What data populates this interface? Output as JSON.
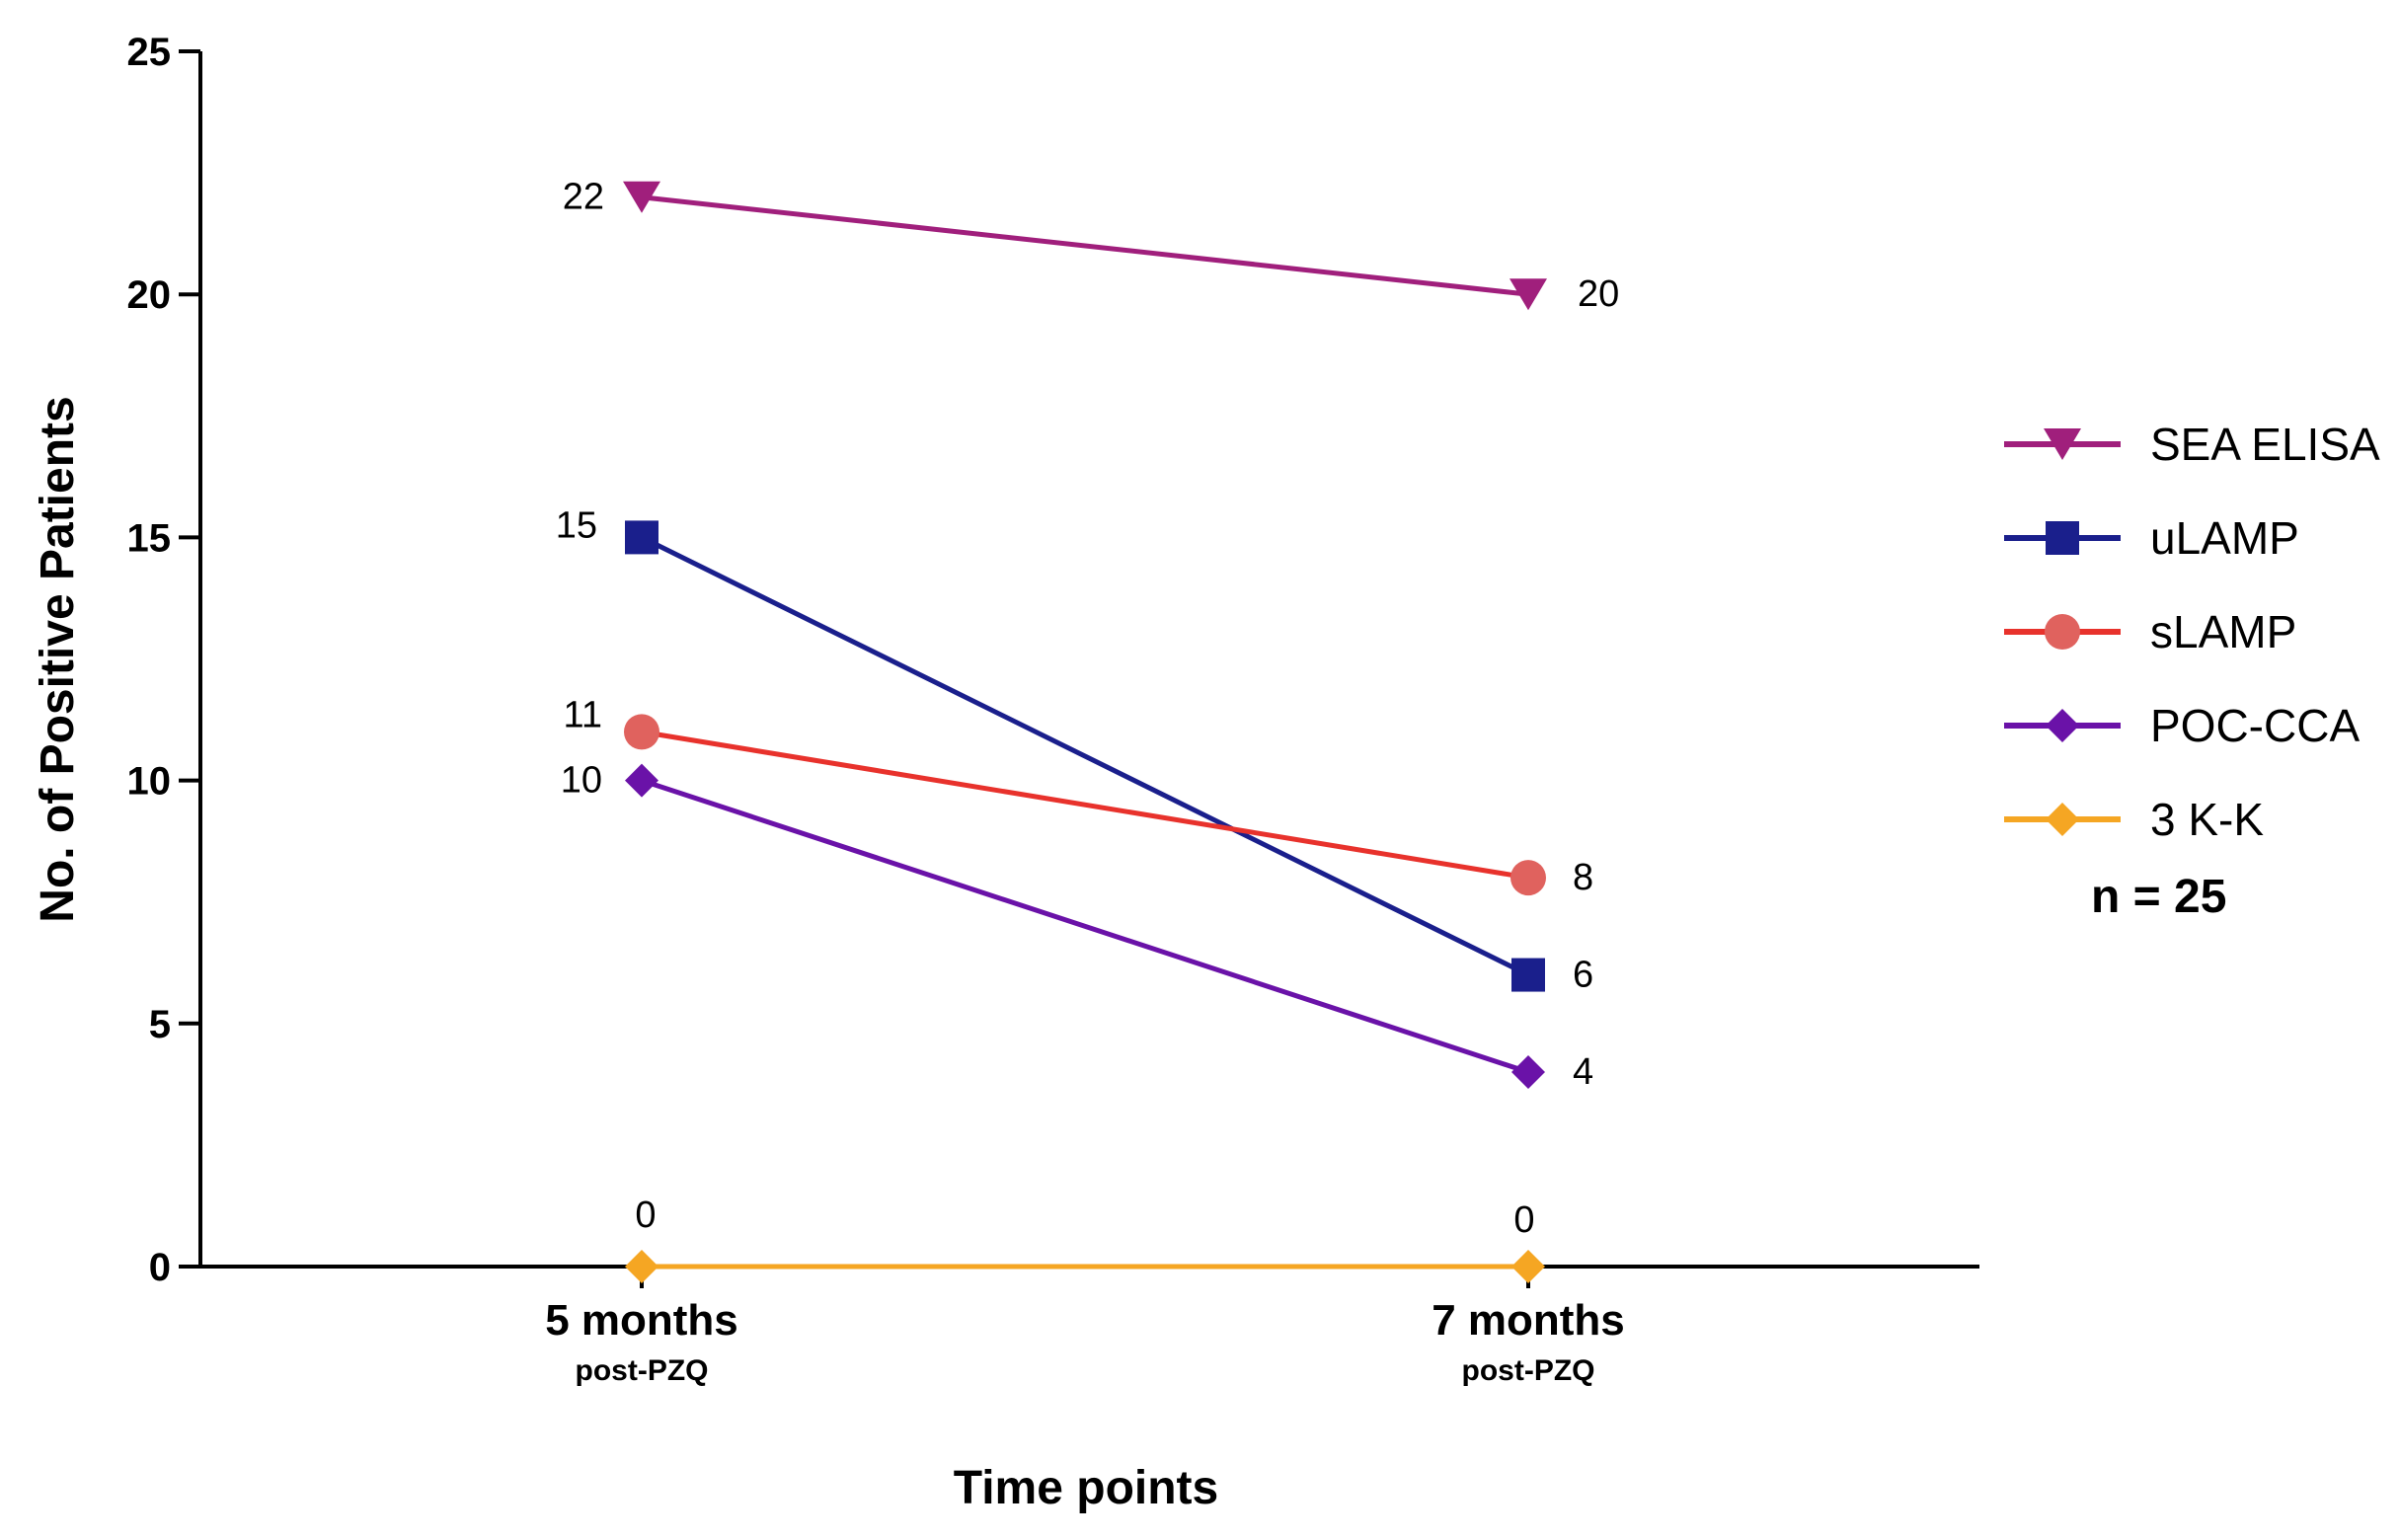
{
  "chart_data": {
    "type": "line",
    "xlabel": "Time points",
    "ylabel": "No. of Positive Patients",
    "ylim": [
      0,
      25
    ],
    "yticks": [
      0,
      5,
      10,
      15,
      20,
      25
    ],
    "categories": [
      {
        "main": "5 months",
        "sub": "post-PZQ"
      },
      {
        "main": "7 months",
        "sub": "post-PZQ"
      }
    ],
    "series": [
      {
        "name": "SEA ELISA",
        "values": [
          22,
          20
        ],
        "color": "#a01f7c",
        "marker": "triangle-down"
      },
      {
        "name": "uLAMP",
        "values": [
          15,
          6
        ],
        "color": "#1a1f8c",
        "marker": "square"
      },
      {
        "name": "sLAMP",
        "values": [
          11,
          8
        ],
        "color": "#e0625e",
        "line_color": "#e8322c",
        "marker": "circle"
      },
      {
        "name": "POC-CCA",
        "values": [
          10,
          4
        ],
        "color": "#6a12a8",
        "marker": "diamond"
      },
      {
        "name": "3 K-K",
        "values": [
          0,
          0
        ],
        "color": "#f5a623",
        "marker": "diamond"
      }
    ],
    "legend_position": "right",
    "grid": false,
    "annotation": "n = 25"
  }
}
